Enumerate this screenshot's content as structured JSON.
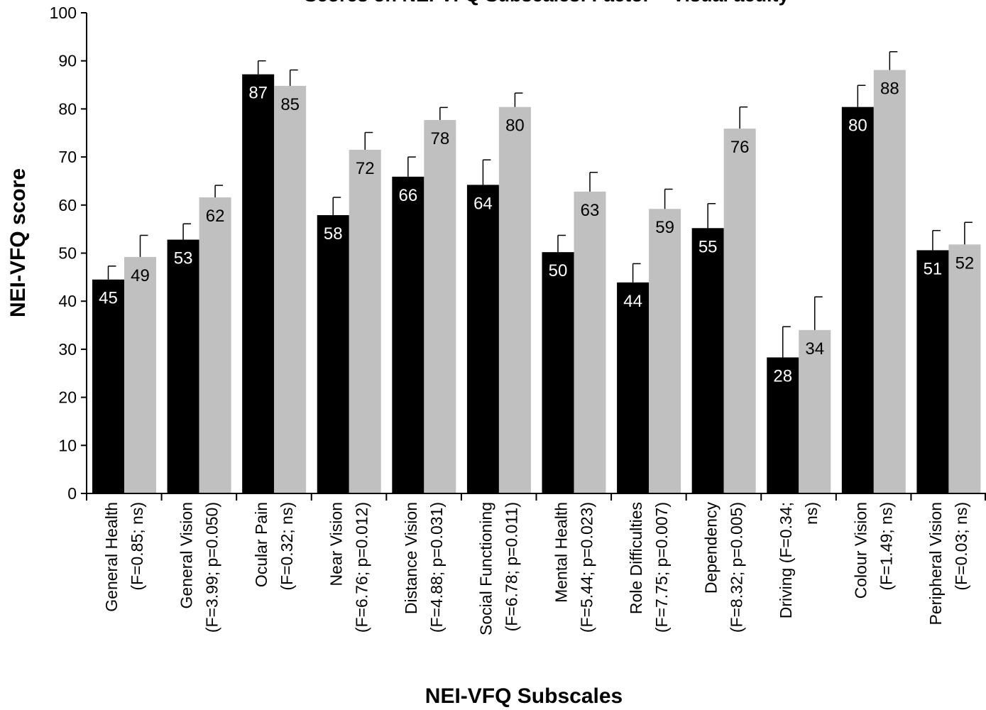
{
  "chart_data": {
    "type": "bar",
    "title": "Scores on NEI-VFQ Subscales: Factor = Visual acuity",
    "xlabel": "NEI-VFQ Subscales",
    "ylabel": "NEI-VFQ score",
    "ylim": [
      0,
      100
    ],
    "yticks": [
      "0",
      "10",
      "20",
      "30",
      "40",
      "50",
      "60",
      "70",
      "80",
      "90",
      "100"
    ],
    "categories": [
      [
        "General Health",
        "(F=0.85; ns)"
      ],
      [
        "General Vision",
        "(F=3.99; p=0.050)"
      ],
      [
        "Ocular Pain",
        "(F=0.32; ns)"
      ],
      [
        "Near Vision",
        "(F=6.76; p=0.012)"
      ],
      [
        "Distance Vision",
        "(F=4.88; p=0.031)"
      ],
      [
        "Social Functioning",
        "(F=6.78; p=0.011)"
      ],
      [
        "Mental Health",
        "(F=5.44; p=0.023)"
      ],
      [
        "Role Difficulties",
        "(F=7.75; p=0.007)"
      ],
      [
        "Dependency",
        "(F=8.32; p=0.005)"
      ],
      [
        "Driving (F=0.34;",
        "ns)"
      ],
      [
        "Colour Vision",
        "(F=1.49; ns)"
      ],
      [
        "Peripheral Vision",
        "(F=0.03; ns)"
      ]
    ],
    "series": [
      {
        "color": "#000000",
        "label_color": "#ffffff",
        "values": [
          44.5,
          52.8,
          87.2,
          57.9,
          65.9,
          64.2,
          50.2,
          43.9,
          55.2,
          28.3,
          80.4,
          50.6
        ],
        "labels": [
          "45",
          "53",
          "87",
          "58",
          "66",
          "64",
          "50",
          "44",
          "55",
          "28",
          "80",
          "51"
        ],
        "errors": [
          2.8,
          3.3,
          2.8,
          3.7,
          4.1,
          5.2,
          3.5,
          3.9,
          5.1,
          6.4,
          4.5,
          4.1
        ]
      },
      {
        "color": "#c0c0c0",
        "label_color": "#000000",
        "values": [
          49.2,
          61.6,
          84.8,
          71.5,
          77.7,
          80.4,
          62.8,
          59.2,
          75.9,
          34.0,
          88.1,
          51.8
        ],
        "labels": [
          "49",
          "62",
          "85",
          "72",
          "78",
          "80",
          "63",
          "59",
          "76",
          "34",
          "88",
          "52"
        ],
        "errors": [
          4.5,
          2.5,
          3.3,
          3.6,
          2.6,
          2.9,
          4.0,
          4.1,
          4.5,
          6.9,
          3.8,
          4.6
        ]
      }
    ],
    "grid": false,
    "legend": "none"
  }
}
